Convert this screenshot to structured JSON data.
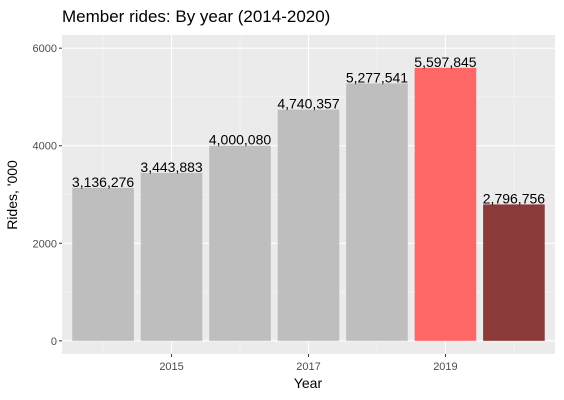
{
  "chart_data": {
    "type": "bar",
    "title": "Member rides: By year (2014-2020)",
    "xlabel": "Year",
    "ylabel": "Rides, '000",
    "categories": [
      "2014",
      "2015",
      "2016",
      "2017",
      "2018",
      "2019",
      "2020"
    ],
    "values": [
      3136276,
      3443883,
      4000080,
      4740357,
      5277541,
      5597845,
      2796756
    ],
    "data_labels": [
      "3,136,276",
      "3,443,883",
      "4,000,080",
      "4,740,357",
      "5,277,541",
      "5,597,845",
      "2,796,756"
    ],
    "bar_colors": [
      "#bebebe",
      "#bebebe",
      "#bebebe",
      "#bebebe",
      "#bebebe",
      "#ff6666",
      "#8b3a3a"
    ],
    "y_ticks": [
      0,
      2000,
      4000,
      6000
    ],
    "y_tick_labels": [
      "0",
      "2000",
      "4000",
      "6000"
    ],
    "x_ticks": [
      2015,
      2017,
      2019
    ],
    "x_tick_labels": [
      "2015",
      "2017",
      "2019"
    ],
    "y_scale_divisor": 1000,
    "ylim": [
      -270,
      6270
    ],
    "xlim": [
      2013.4,
      2020.6
    ],
    "panel_background": "#ebebeb",
    "grid": true,
    "legend": "none"
  }
}
